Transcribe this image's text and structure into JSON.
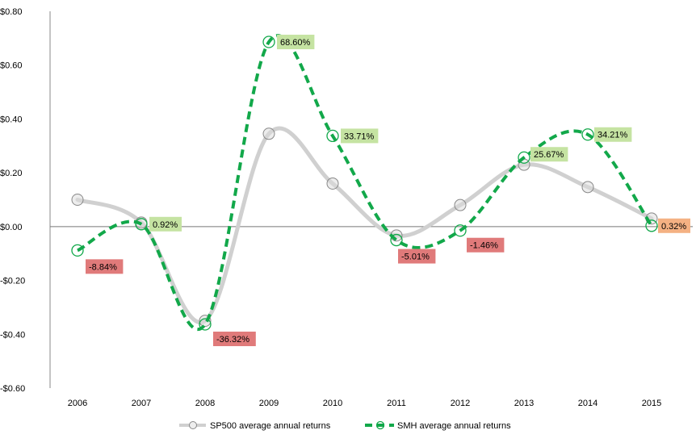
{
  "chart_data": {
    "type": "line",
    "title": "",
    "xlabel": "",
    "ylabel": "",
    "categories": [
      "2006",
      "2007",
      "2008",
      "2009",
      "2010",
      "2011",
      "2012",
      "2013",
      "2014",
      "2015"
    ],
    "ylim": [
      -0.6,
      0.8
    ],
    "yticks": [
      0.8,
      0.6,
      0.4,
      0.2,
      0.0,
      -0.2,
      -0.4,
      -0.6
    ],
    "ytick_labels": [
      "$0.80",
      "$0.60",
      "$0.40",
      "$0.20",
      "$0.00",
      "-$0.20",
      "-$0.40",
      "-$0.60"
    ],
    "grid": false,
    "legend_position": "bottom",
    "series": [
      {
        "name": "SP500 average annual returns",
        "color": "#d0d0d0",
        "values": [
          0.1,
          0.015,
          -0.35,
          0.345,
          0.16,
          -0.033,
          0.08,
          0.23,
          0.147,
          0.03
        ]
      },
      {
        "name": "SMH average annual returns",
        "color": "#12a84a",
        "values": [
          -0.0884,
          0.0092,
          -0.3632,
          0.686,
          0.3371,
          -0.0501,
          -0.0146,
          0.2567,
          0.3421,
          0.0032
        ],
        "data_labels": [
          "-8.84%",
          "0.92%",
          "-36.32%",
          "68.60%",
          "33.71%",
          "-5.01%",
          "-1.46%",
          "25.67%",
          "34.21%",
          "0.32%"
        ],
        "label_colors": [
          "#e07a7a",
          "#c5e3a2",
          "#e07a7a",
          "#c5e3a2",
          "#c5e3a2",
          "#e07a7a",
          "#e07a7a",
          "#c5e3a2",
          "#c5e3a2",
          "#f4b183"
        ]
      }
    ]
  }
}
